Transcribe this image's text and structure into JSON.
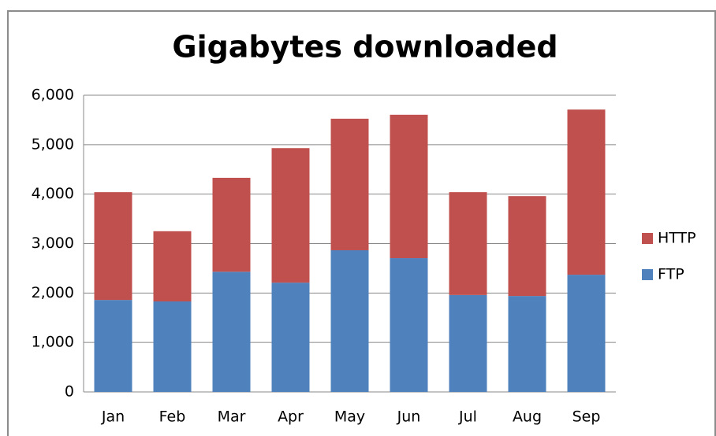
{
  "chart_data": {
    "type": "stacked_bar",
    "title": "Gigabytes downloaded",
    "categories": [
      "Jan",
      "Feb",
      "Mar",
      "Apr",
      "May",
      "Jun",
      "Jul",
      "Aug",
      "Sep"
    ],
    "series": [
      {
        "name": "FTP",
        "color": "#4f81bd",
        "values": [
          1860,
          1830,
          2430,
          2210,
          2865,
          2705,
          1960,
          1940,
          2370
        ]
      },
      {
        "name": "HTTP",
        "color": "#c0504d",
        "values": [
          2180,
          1420,
          1900,
          2720,
          2660,
          2900,
          2080,
          2020,
          3340
        ]
      }
    ],
    "ylim": [
      0,
      6000
    ],
    "yticks": [
      0,
      {
        "value": 1000,
        "label": "1,000"
      },
      {
        "value": 2000,
        "label": "2,000"
      },
      {
        "value": 3000,
        "label": "3,000"
      },
      {
        "value": 4000,
        "label": "4,000"
      },
      {
        "value": 5000,
        "label": "5,000"
      },
      {
        "value": 6000,
        "label": "6,000"
      }
    ],
    "grid": true,
    "legend": "right"
  }
}
